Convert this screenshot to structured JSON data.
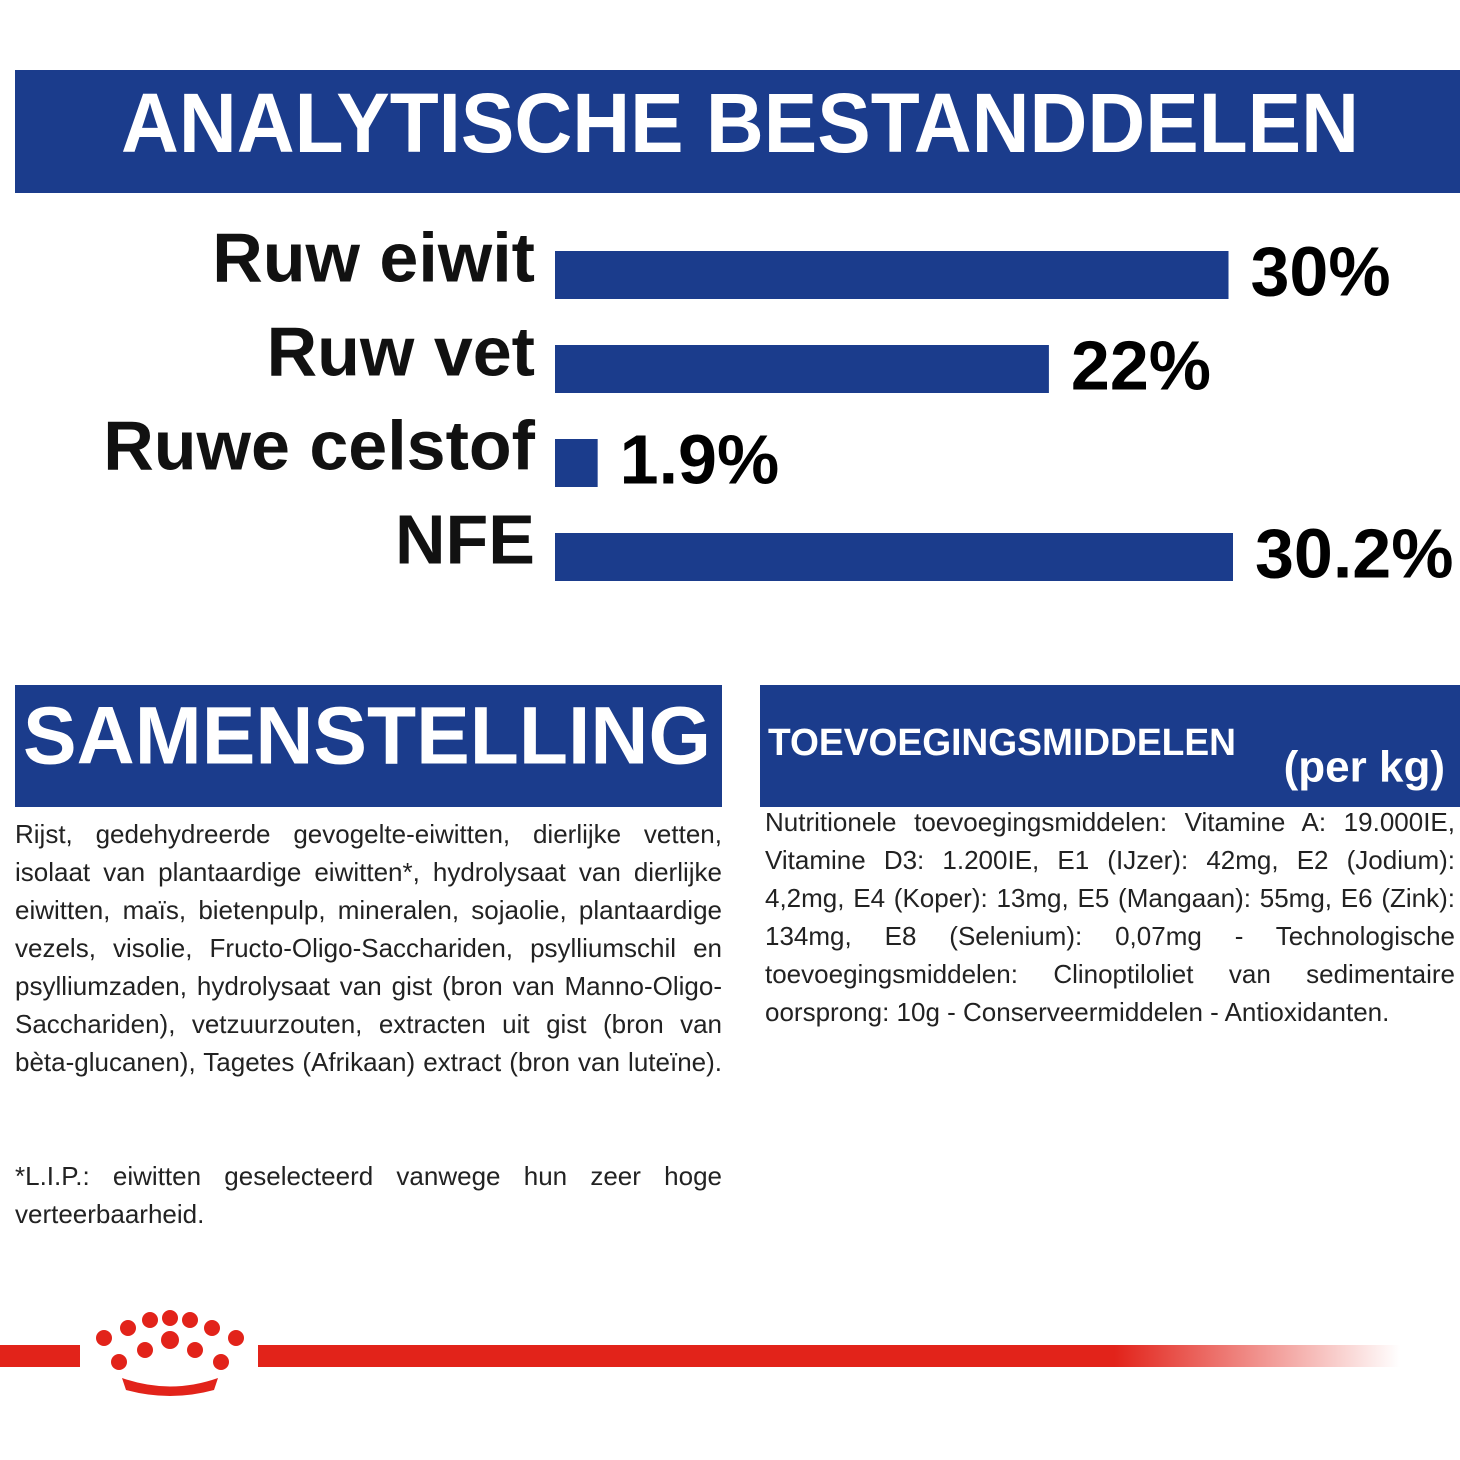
{
  "chart_data": {
    "type": "bar",
    "title": "ANALYTISCHE BESTANDDELEN",
    "categories": [
      "Ruw eiwit",
      "Ruw vet",
      "Ruwe celstof",
      "NFE"
    ],
    "values": [
      30,
      22,
      1.9,
      30.2
    ],
    "value_labels": [
      "30%",
      "22%",
      "1.9%",
      "30.2%"
    ],
    "color": "#1b3c8c"
  },
  "composition": {
    "title": "SAMENSTELLING",
    "text": "Rijst, gedehydreerde gevogelte-eiwitten, dierlijke vetten, isolaat van plantaardige eiwitten*, hydrolysaat van dierlijke eiwitten, maïs, bietenpulp, mineralen, sojaolie, plantaardige vezels, visolie, Fructo-Oligo-Sacchariden, psylliumschil en psylliumzaden, hydrolysaat van gist (bron van Manno-Oligo-Sacchariden), vetzuurzouten, extracten uit gist (bron van bèta-glucanen), Tagetes (Afrikaan) extract (bron van luteïne).",
    "note": "*L.I.P.: eiwitten geselecteerd vanwege hun zeer hoge verteerbaarheid."
  },
  "additives": {
    "title": "TOEVOEGINGSMIDDELEN",
    "unit": "(per kg)",
    "text": "Nutritionele toevoegingsmiddelen: Vitamine A: 19.000IE, Vitamine D3: 1.200IE, E1 (IJzer): 42mg, E2 (Jodium): 4,2mg, E4 (Koper): 13mg, E5 (Mangaan): 55mg, E6 (Zink): 134mg, E8 (Selenium): 0,07mg - Technologische toevoegingsmiddelen: Clinoptiloliet van sedimentaire oorsprong: 10g - Conserveermiddelen - Antioxidanten."
  }
}
